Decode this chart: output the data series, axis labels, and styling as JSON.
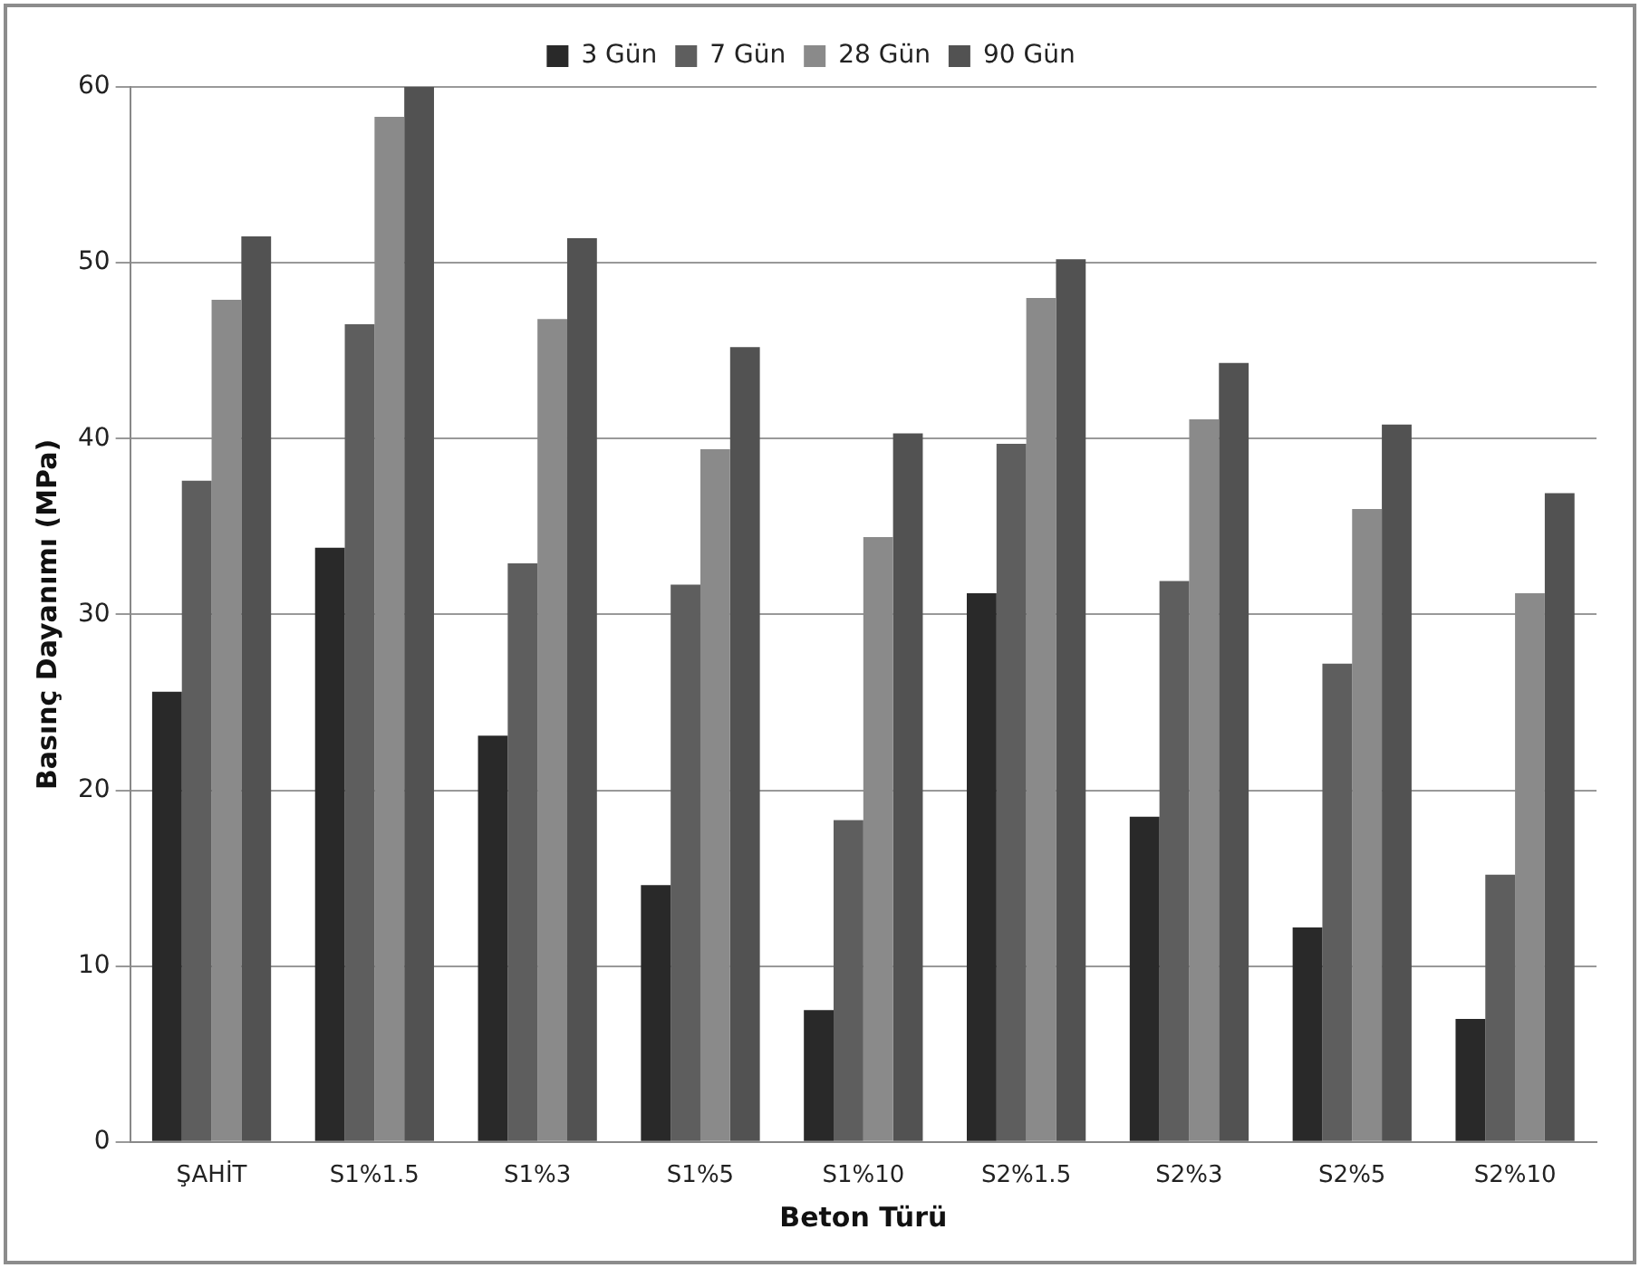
{
  "chart_data": {
    "type": "bar",
    "xlabel": "Beton Türü",
    "ylabel": "Basınç Dayanımı (MPa)",
    "categories": [
      "ŞAHİT",
      "S1%1.5",
      "S1%3",
      "S1%5",
      "S1%10",
      "S2%1.5",
      "S2%3",
      "S2%5",
      "S2%10"
    ],
    "series": [
      {
        "name": "3 Gün",
        "color": "#292929",
        "values": [
          25.6,
          33.8,
          23.1,
          14.6,
          7.5,
          31.2,
          18.5,
          12.2,
          7.0
        ]
      },
      {
        "name": "7 Gün",
        "color": "#5e5e5e",
        "values": [
          37.6,
          46.5,
          32.9,
          31.7,
          18.3,
          39.7,
          31.9,
          27.2,
          15.2
        ]
      },
      {
        "name": "28 Gün",
        "color": "#8a8a8a",
        "values": [
          47.9,
          58.3,
          46.8,
          39.4,
          34.4,
          48.0,
          41.1,
          36.0,
          31.2
        ]
      },
      {
        "name": "90 Gün",
        "color": "#525252",
        "values": [
          51.5,
          60.0,
          51.4,
          45.2,
          40.3,
          50.2,
          44.3,
          40.8,
          36.9
        ]
      }
    ],
    "ylim": [
      0,
      60
    ],
    "yticks": [
      0,
      10,
      20,
      30,
      40,
      50,
      60
    ],
    "grid": "y",
    "legend": "top"
  }
}
